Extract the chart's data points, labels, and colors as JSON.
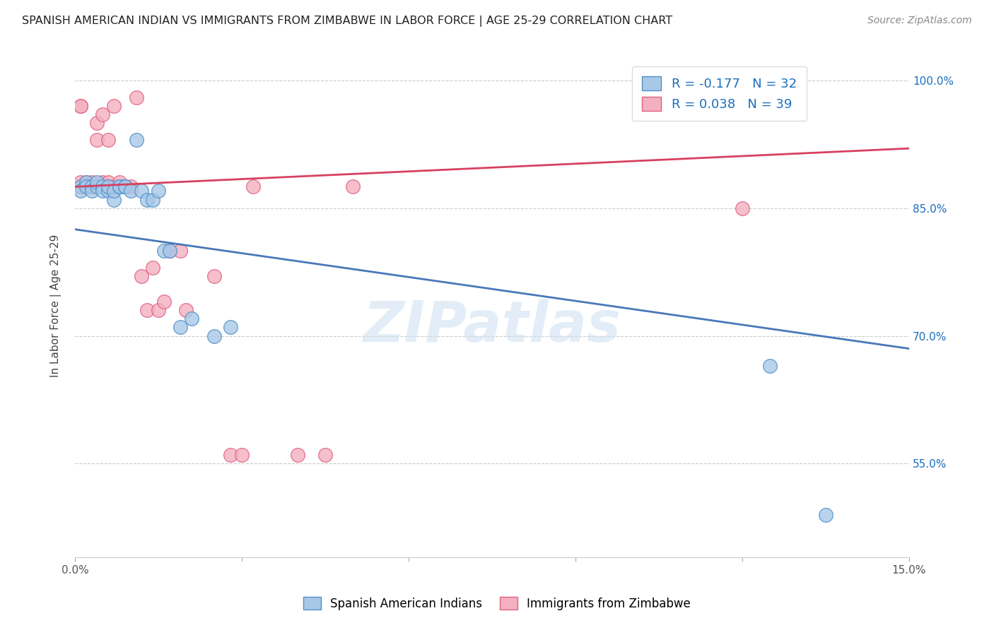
{
  "title": "SPANISH AMERICAN INDIAN VS IMMIGRANTS FROM ZIMBABWE IN LABOR FORCE | AGE 25-29 CORRELATION CHART",
  "source": "Source: ZipAtlas.com",
  "ylabel": "In Labor Force | Age 25-29",
  "xlim": [
    0.0,
    0.15
  ],
  "ylim": [
    0.44,
    1.03
  ],
  "xtick_positions": [
    0.0,
    0.03,
    0.06,
    0.09,
    0.12,
    0.15
  ],
  "xticklabels": [
    "0.0%",
    "",
    "",
    "",
    "",
    "15.0%"
  ],
  "ytick_positions": [
    0.55,
    0.7,
    0.85,
    1.0
  ],
  "yticklabels": [
    "55.0%",
    "70.0%",
    "85.0%",
    "100.0%"
  ],
  "blue_fill": "#a8c8e8",
  "blue_edge": "#5090c8",
  "pink_fill": "#f4b0c0",
  "pink_edge": "#e06080",
  "blue_line_color": "#4878b8",
  "pink_line_color": "#d84060",
  "R_blue": -0.177,
  "N_blue": 32,
  "R_pink": 0.038,
  "N_pink": 39,
  "legend_label_color": "#1a6fbc",
  "watermark": "ZIPatlas",
  "blue_trend_x": [
    0.0,
    0.15
  ],
  "blue_trend_y": [
    0.825,
    0.685
  ],
  "pink_trend_x": [
    0.0,
    0.15
  ],
  "pink_trend_y": [
    0.875,
    0.92
  ],
  "blue_scatter_x": [
    0.001,
    0.001,
    0.002,
    0.002,
    0.003,
    0.003,
    0.004,
    0.004,
    0.005,
    0.005,
    0.006,
    0.006,
    0.007,
    0.007,
    0.008,
    0.008,
    0.009,
    0.009,
    0.01,
    0.011,
    0.012,
    0.013,
    0.014,
    0.015,
    0.016,
    0.017,
    0.019,
    0.021,
    0.025,
    0.028,
    0.125,
    0.135
  ],
  "blue_scatter_y": [
    0.875,
    0.87,
    0.88,
    0.875,
    0.875,
    0.87,
    0.875,
    0.88,
    0.875,
    0.87,
    0.87,
    0.875,
    0.86,
    0.87,
    0.875,
    0.875,
    0.875,
    0.875,
    0.87,
    0.93,
    0.87,
    0.86,
    0.86,
    0.87,
    0.8,
    0.8,
    0.71,
    0.72,
    0.7,
    0.71,
    0.665,
    0.49
  ],
  "pink_scatter_x": [
    0.001,
    0.001,
    0.001,
    0.001,
    0.002,
    0.002,
    0.003,
    0.003,
    0.003,
    0.004,
    0.004,
    0.005,
    0.005,
    0.006,
    0.006,
    0.006,
    0.007,
    0.007,
    0.008,
    0.008,
    0.009,
    0.01,
    0.011,
    0.012,
    0.013,
    0.014,
    0.015,
    0.016,
    0.017,
    0.019,
    0.02,
    0.025,
    0.028,
    0.03,
    0.032,
    0.04,
    0.045,
    0.05,
    0.12
  ],
  "pink_scatter_y": [
    0.875,
    0.88,
    0.97,
    0.97,
    0.875,
    0.88,
    0.875,
    0.88,
    0.875,
    0.93,
    0.95,
    0.88,
    0.96,
    0.875,
    0.88,
    0.93,
    0.875,
    0.97,
    0.875,
    0.88,
    0.875,
    0.875,
    0.98,
    0.77,
    0.73,
    0.78,
    0.73,
    0.74,
    0.8,
    0.8,
    0.73,
    0.77,
    0.56,
    0.56,
    0.875,
    0.56,
    0.56,
    0.875,
    0.85
  ]
}
